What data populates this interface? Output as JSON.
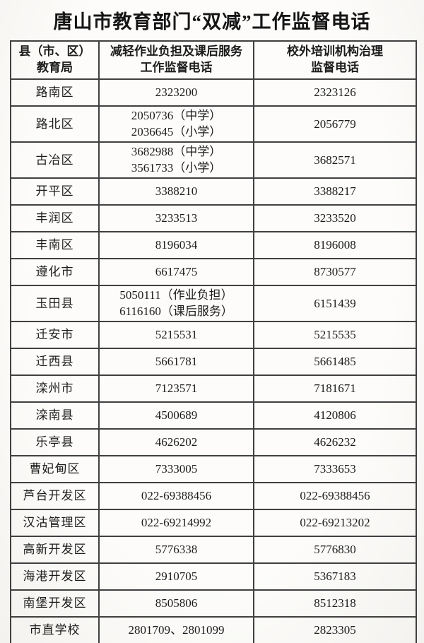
{
  "title": "唐山市教育部门“双减”工作监督电话",
  "colors": {
    "background": "#fbfaf8",
    "text": "#1c1c1c",
    "border": "#404040"
  },
  "table": {
    "headers": [
      {
        "line1": "县（市、区）",
        "line2": "教育局"
      },
      {
        "line1": "减轻作业负担及课后服务",
        "line2": "工作监督电话"
      },
      {
        "line1": "校外培训机构治理",
        "line2": "监督电话"
      }
    ],
    "rows": [
      {
        "district": "路南区",
        "homework_phones": [
          "2323200"
        ],
        "training_phone": "2323126"
      },
      {
        "district": "路北区",
        "homework_phones": [
          "2050736（中学）",
          "2036645（小学）"
        ],
        "training_phone": "2056779"
      },
      {
        "district": "古冶区",
        "homework_phones": [
          "3682988（中学）",
          "3561733（小学）"
        ],
        "training_phone": "3682571"
      },
      {
        "district": "开平区",
        "homework_phones": [
          "3388210"
        ],
        "training_phone": "3388217"
      },
      {
        "district": "丰润区",
        "homework_phones": [
          "3233513"
        ],
        "training_phone": "3233520"
      },
      {
        "district": "丰南区",
        "homework_phones": [
          "8196034"
        ],
        "training_phone": "8196008"
      },
      {
        "district": "遵化市",
        "homework_phones": [
          "6617475"
        ],
        "training_phone": "8730577"
      },
      {
        "district": "玉田县",
        "homework_phones": [
          "5050111（作业负担）",
          "6116160（课后服务）"
        ],
        "training_phone": "6151439"
      },
      {
        "district": "迁安市",
        "homework_phones": [
          "5215531"
        ],
        "training_phone": "5215535"
      },
      {
        "district": "迁西县",
        "homework_phones": [
          "5661781"
        ],
        "training_phone": "5661485"
      },
      {
        "district": "滦州市",
        "homework_phones": [
          "7123571"
        ],
        "training_phone": "7181671"
      },
      {
        "district": "滦南县",
        "homework_phones": [
          "4500689"
        ],
        "training_phone": "4120806"
      },
      {
        "district": "乐亭县",
        "homework_phones": [
          "4626202"
        ],
        "training_phone": "4626232"
      },
      {
        "district": "曹妃甸区",
        "homework_phones": [
          "7333005"
        ],
        "training_phone": "7333653"
      },
      {
        "district": "芦台开发区",
        "homework_phones": [
          "022-69388456"
        ],
        "training_phone": "022-69388456"
      },
      {
        "district": "汉沽管理区",
        "homework_phones": [
          "022-69214992"
        ],
        "training_phone": "022-69213202"
      },
      {
        "district": "高新开发区",
        "homework_phones": [
          "5776338"
        ],
        "training_phone": "5776830"
      },
      {
        "district": "海港开发区",
        "homework_phones": [
          "2910705"
        ],
        "training_phone": "5367183"
      },
      {
        "district": "南堡开发区",
        "homework_phones": [
          "8505806"
        ],
        "training_phone": "8512318"
      },
      {
        "district": "市直学校",
        "homework_phones": [
          "2801709、2801099"
        ],
        "training_phone": "2823305"
      }
    ]
  }
}
